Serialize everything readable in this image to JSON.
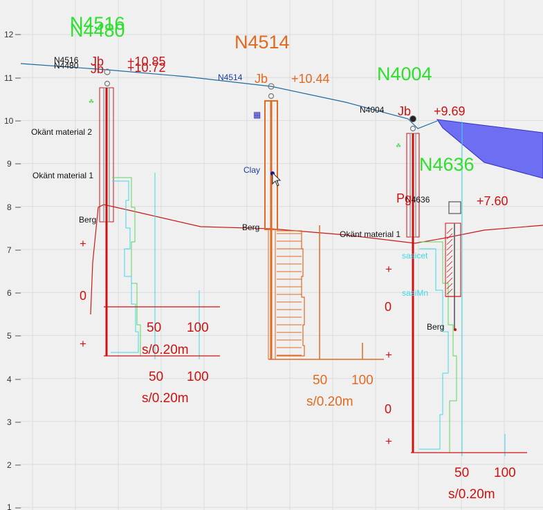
{
  "y_axis": {
    "ticks": [
      "12",
      "11",
      "10",
      "9",
      "8",
      "7",
      "6",
      "5",
      "4",
      "3",
      "2",
      "1"
    ]
  },
  "boreholes": [
    {
      "id": "N4516",
      "label_big": "N4516",
      "label_small": "N4516",
      "method": "Jb",
      "elev": "+10.85"
    },
    {
      "id": "N4480",
      "label_big": "N4480",
      "label_small": "N4480",
      "method": "Jb",
      "elev": "+10.72"
    },
    {
      "id": "N4514",
      "label_big": "N4514",
      "label_small": "N4514",
      "method": "Jb",
      "elev": "+10.44"
    },
    {
      "id": "N4004",
      "label_big": "N4004",
      "label_small": "N4004",
      "method": "Jb",
      "elev": "+9.69"
    },
    {
      "id": "N4636",
      "label_big": "N4636",
      "label_small": "N4636",
      "method": "Pg",
      "elev": "+7.60"
    }
  ],
  "layers": {
    "okant_material_2": "Okänt material 2",
    "okant_material_1_a": "Okänt material 1",
    "okant_material_1_b": "Okänt material 1",
    "berg_a": "Berg",
    "berg_b": "Berg",
    "berg_c": "Berg",
    "clay": "Clay",
    "sasicet": "sasicet",
    "sasiMn": "sasiMn"
  },
  "scales": {
    "s50": "50",
    "s100": "100",
    "unit": "s/0.20m",
    "plus": "+",
    "zero": "0"
  },
  "colors": {
    "green": "#2ee02e",
    "orange": "#e06a20",
    "red": "#d01010",
    "surface": "#1c6aa0",
    "fill": "#6e6ef2",
    "grid": "#dadada",
    "cyan": "#40d8e8",
    "lime": "#5ad85a"
  }
}
